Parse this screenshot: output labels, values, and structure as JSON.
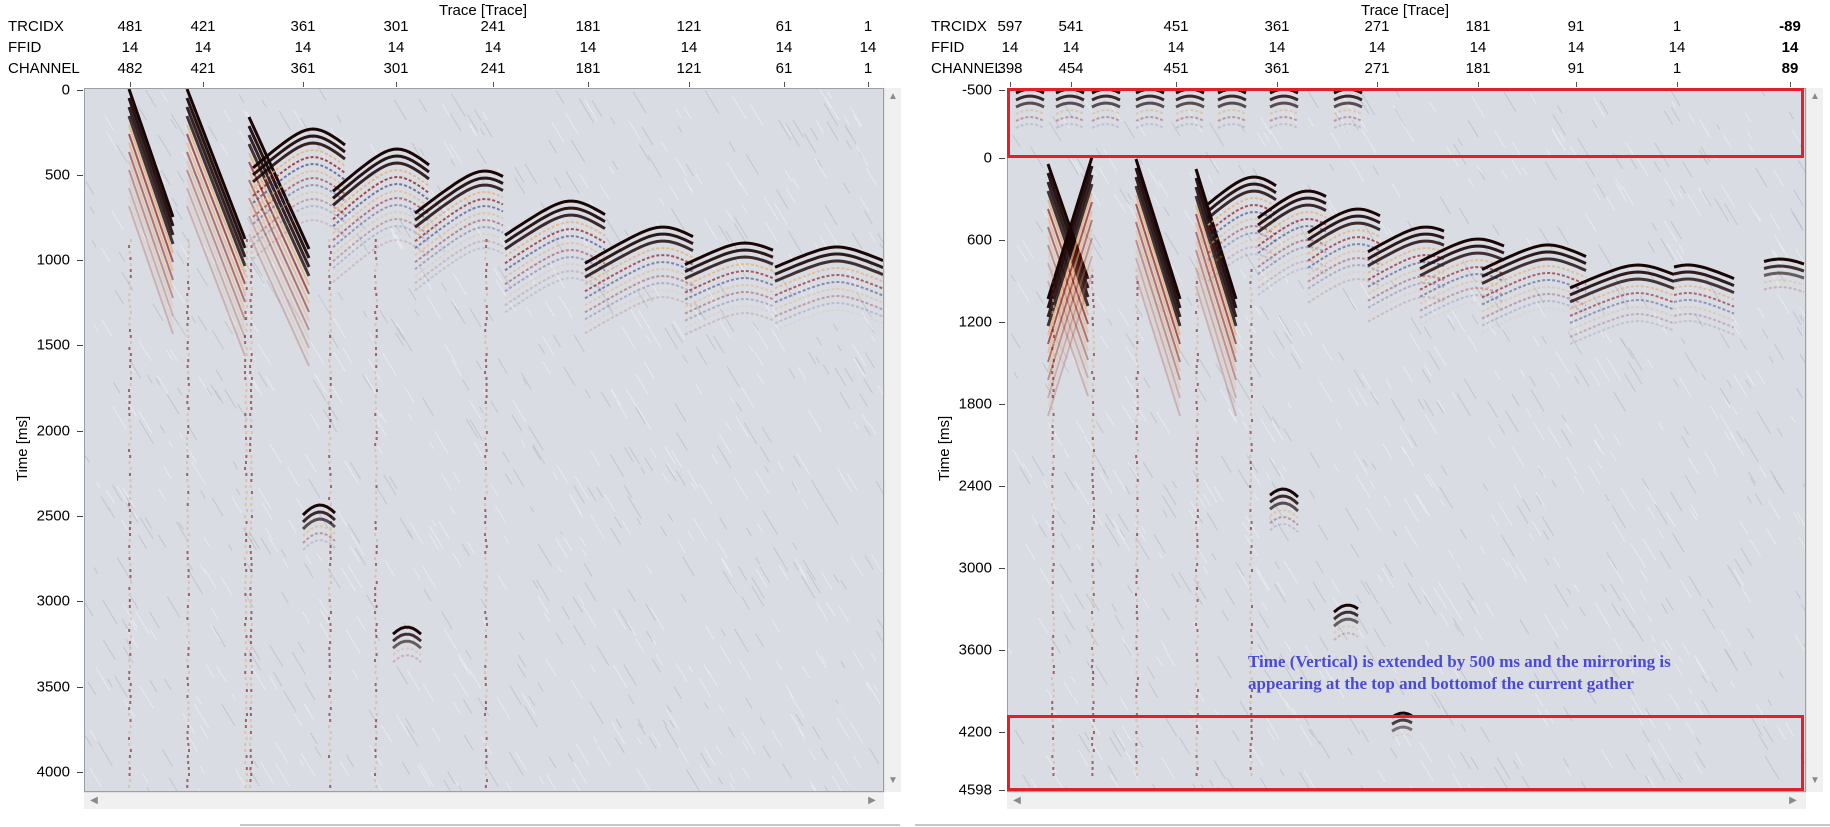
{
  "left_panel": {
    "axis_title": "Trace [Trace]",
    "header_labels": [
      "TRCIDX",
      "FFID",
      "CHANNEL"
    ],
    "columns": [
      {
        "trcidx": "481",
        "ffid": "14",
        "channel": "482"
      },
      {
        "trcidx": "421",
        "ffid": "14",
        "channel": "421"
      },
      {
        "trcidx": "361",
        "ffid": "14",
        "channel": "361"
      },
      {
        "trcidx": "301",
        "ffid": "14",
        "channel": "301"
      },
      {
        "trcidx": "241",
        "ffid": "14",
        "channel": "241"
      },
      {
        "trcidx": "181",
        "ffid": "14",
        "channel": "181"
      },
      {
        "trcidx": "121",
        "ffid": "14",
        "channel": "121"
      },
      {
        "trcidx": "61",
        "ffid": "14",
        "channel": "61"
      },
      {
        "trcidx": "1",
        "ffid": "14",
        "channel": "1"
      }
    ],
    "time_label": "Time [ms]",
    "time_ticks": [
      "0",
      "500",
      "1000",
      "1500",
      "2000",
      "2500",
      "3000",
      "3500",
      "4000"
    ]
  },
  "right_panel": {
    "axis_title": "Trace [Trace]",
    "header_labels": [
      "TRCIDX",
      "FFID",
      "CHANNEL"
    ],
    "columns": [
      {
        "trcidx": "597",
        "ffid": "14",
        "channel": "398"
      },
      {
        "trcidx": "541",
        "ffid": "14",
        "channel": "454"
      },
      {
        "trcidx": "451",
        "ffid": "14",
        "channel": "451"
      },
      {
        "trcidx": "361",
        "ffid": "14",
        "channel": "361"
      },
      {
        "trcidx": "271",
        "ffid": "14",
        "channel": "271"
      },
      {
        "trcidx": "181",
        "ffid": "14",
        "channel": "181"
      },
      {
        "trcidx": "91",
        "ffid": "14",
        "channel": "91"
      },
      {
        "trcidx": "1",
        "ffid": "14",
        "channel": "1"
      },
      {
        "trcidx": "-89",
        "ffid": "14",
        "channel": "89"
      }
    ],
    "time_label": "Time [ms]",
    "time_ticks": [
      "-500",
      "0",
      "600",
      "1200",
      "1800",
      "2400",
      "3000",
      "3600",
      "4200",
      "4598"
    ],
    "annotation_line1": "Time (Vertical) is extended by 500 ms and the mirroring is",
    "annotation_line2": "appearing at the top and bottomof the current gather",
    "highlight_color": "#e0202a",
    "annotation_color": "#4a4ad6"
  },
  "colors": {
    "seismic_background": "#d9dce3",
    "positive_amplitude": "#8b0a0a",
    "strong_amplitude": "#1a0505",
    "moderate_amplitude": "#e8b070",
    "negative_amplitude": "#3a3a7a"
  },
  "icons": {
    "scroll_up": "triangle-up-icon",
    "scroll_down": "triangle-down-icon",
    "scroll_left": "triangle-left-icon",
    "scroll_right": "triangle-right-icon"
  }
}
